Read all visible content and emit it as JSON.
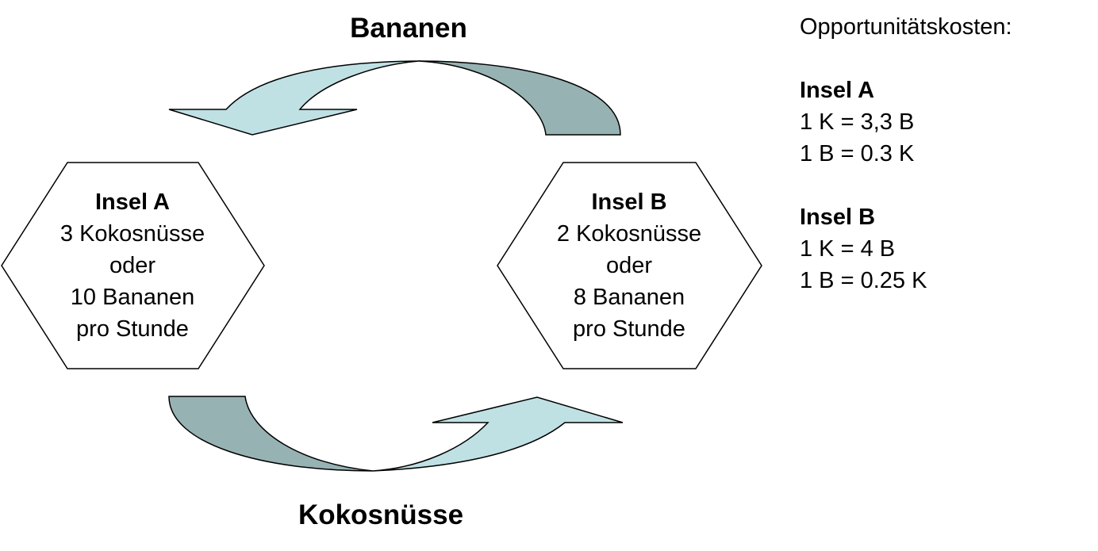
{
  "flows": {
    "top_label": "Bananen",
    "bottom_label": "Kokosnüsse"
  },
  "islands": [
    {
      "title": "Insel A",
      "lines": [
        "3 Kokosnüsse",
        "oder",
        "10 Bananen",
        "pro Stunde"
      ]
    },
    {
      "title": "Insel B",
      "lines": [
        "2 Kokosnüsse",
        "oder",
        "8 Bananen",
        "pro Stunde"
      ]
    }
  ],
  "opportunity_costs": {
    "heading": "Opportunitätskosten:",
    "islands": [
      {
        "title": "Insel A",
        "lines": [
          "1 K = 3,3 B",
          "1 B = 0.3 K"
        ]
      },
      {
        "title": "Insel B",
        "lines": [
          "1 K = 4 B",
          "1 B = 0.25 K"
        ]
      }
    ]
  },
  "colors": {
    "arrow_light": "#bfe1e4",
    "arrow_dark": "#97b2b3",
    "outline": "#000000",
    "background": "#ffffff"
  }
}
